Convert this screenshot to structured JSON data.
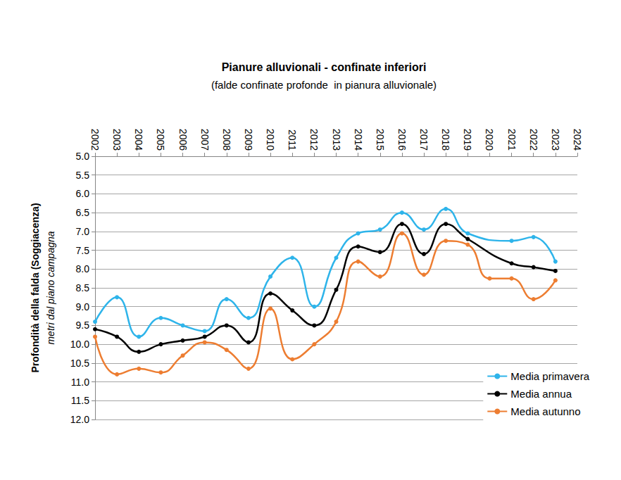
{
  "chart_data": {
    "type": "line",
    "title": "Pianure alluvionali - confinate inferiori",
    "subtitle": "(falde confinate profonde  in pianura alluvionale)",
    "ylabel": "Profondità della falda (Soggiacenza)",
    "ylabel_sub": "metri dal piano campagna",
    "categories": [
      "2002",
      "2003",
      "2004",
      "2005",
      "2006",
      "2007",
      "2008",
      "2009",
      "2010",
      "2011",
      "2012",
      "2013",
      "2014",
      "2015",
      "2016",
      "2017",
      "2018",
      "2019",
      "2020",
      "2021",
      "2022",
      "2023",
      "2024"
    ],
    "series": [
      {
        "name": "Media primavera",
        "color": "#2eb4ea",
        "marker": "circle",
        "values": [
          9.4,
          8.75,
          9.8,
          9.3,
          9.5,
          9.65,
          8.8,
          9.3,
          8.2,
          7.7,
          9.0,
          7.7,
          7.05,
          6.95,
          6.5,
          6.95,
          6.4,
          7.05,
          null,
          7.25,
          7.15,
          7.8,
          null
        ]
      },
      {
        "name": "Media annua",
        "color": "#000000",
        "marker": "circle",
        "values": [
          9.6,
          9.8,
          10.2,
          10.0,
          9.9,
          9.8,
          9.5,
          9.95,
          8.65,
          9.1,
          9.5,
          8.55,
          7.4,
          7.55,
          6.8,
          7.6,
          6.8,
          7.2,
          null,
          7.85,
          7.95,
          8.05,
          null
        ]
      },
      {
        "name": "Media autunno",
        "color": "#ed7d31",
        "marker": "circle",
        "values": [
          9.8,
          10.8,
          10.65,
          10.75,
          10.3,
          9.95,
          10.15,
          10.65,
          9.05,
          10.4,
          10.0,
          9.4,
          7.8,
          8.2,
          7.05,
          8.15,
          7.25,
          7.35,
          8.25,
          8.25,
          8.8,
          8.3,
          null
        ]
      }
    ],
    "ylim": [
      12,
      5
    ],
    "yticks": [
      {
        "value": 5,
        "label": "5.0"
      },
      {
        "value": 5.5,
        "label": "5.5"
      },
      {
        "value": 6,
        "label": "6.0"
      },
      {
        "value": 6.5,
        "label": "6.5"
      },
      {
        "value": 7,
        "label": "7.0"
      },
      {
        "value": 7.5,
        "label": "7.5"
      },
      {
        "value": 8,
        "label": "8.0"
      },
      {
        "value": 8.5,
        "label": "8.5"
      },
      {
        "value": 9,
        "label": "9.0"
      },
      {
        "value": 9.5,
        "label": "9.5"
      },
      {
        "value": 10,
        "label": "10.0"
      },
      {
        "value": 10.5,
        "label": "10.5"
      },
      {
        "value": 11,
        "label": "11.0"
      },
      {
        "value": 11.5,
        "label": "11.5"
      },
      {
        "value": 12,
        "label": "12.0"
      }
    ],
    "grid": true,
    "legend": "bottom-right"
  }
}
